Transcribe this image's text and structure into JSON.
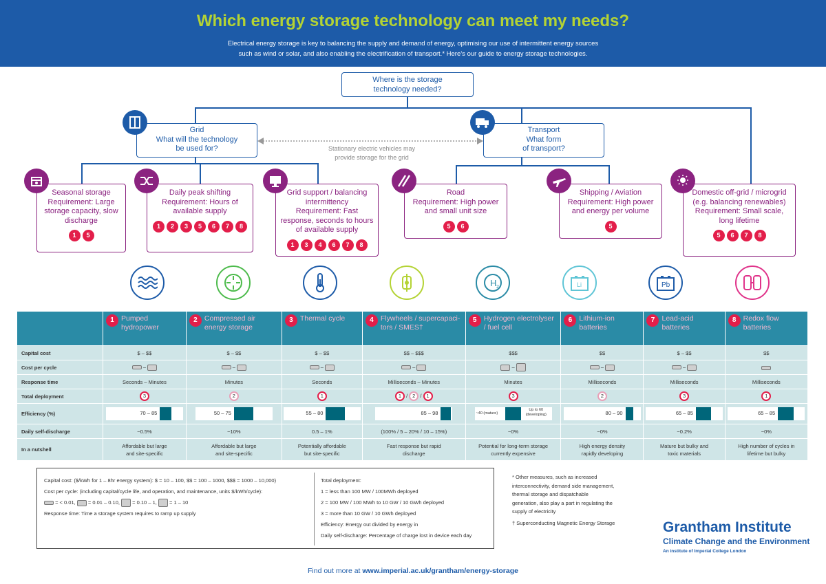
{
  "header": {
    "title": "Which energy storage technology can meet my needs?",
    "subtitle_line1": "Electrical energy storage is key to balancing the supply and demand of energy, optimising our use of intermittent energy sources",
    "subtitle_line2": "such as wind or solar, and also enabling the electrification of transport.* Here’s our guide to energy storage technologies."
  },
  "tree": {
    "root": {
      "line1": "Where is the storage",
      "line2": "technology needed?"
    },
    "grid": {
      "title": "Grid",
      "line1": "What will the technology",
      "line2": "be used for?"
    },
    "transport": {
      "title": "Transport",
      "line1": "What form",
      "line2": "of transport?"
    },
    "arrow_note_line1": "Stationary electric vehicles may",
    "arrow_note_line2": "provide storage for the grid",
    "nodes": [
      {
        "title": "Seasonal storage",
        "req": "Requirement: Large storage capacity, slow discharge",
        "dots": [
          "1",
          "5"
        ]
      },
      {
        "title": "Daily peak shifting",
        "req": "Requirement: Hours of available supply",
        "dots": [
          "1",
          "2",
          "3",
          "5",
          "6",
          "7",
          "8"
        ]
      },
      {
        "title": "Grid support / balancing intermittency",
        "req": "Requirement: Fast response, seconds to hours of available supply",
        "dots": [
          "1",
          "3",
          "4",
          "6",
          "7",
          "8"
        ]
      },
      {
        "title": "Road",
        "req": "Requirement: High power and small unit size",
        "dots": [
          "5",
          "6"
        ]
      },
      {
        "title": "Shipping / Aviation",
        "req": "Requirement: High power and energy per volume",
        "dots": [
          "5"
        ]
      },
      {
        "title": "Domestic off-grid / microgrid",
        "req": "(e.g. balancing renewables) Requirement: Small scale, long lifetime",
        "dots": [
          "5",
          "6",
          "7",
          "8"
        ]
      }
    ]
  },
  "icons": {
    "seasonal": "calendar-icon",
    "peak": "shuffle-icon",
    "gridsupport": "monitor-icon",
    "road": "road-icon",
    "shipping": "plane-icon",
    "domestic": "sun-icon",
    "grid": "door-icon",
    "transport": "truck-icon"
  },
  "tech_icon_names": [
    "waves-icon",
    "compress-icon",
    "thermometer-icon",
    "flywheel-icon",
    "hydrogen-icon",
    "lithium-battery-icon",
    "lead-battery-icon",
    "redox-icon"
  ],
  "tech_icon_text": {
    "h2": "H",
    "h2sub": "2",
    "li": "Li",
    "pb": "Pb"
  },
  "table": {
    "labels": {
      "capital": "Capital cost",
      "cycle": "Cost per cycle",
      "response": "Response time",
      "deployment": "Total deployment",
      "efficiency": "Efficiency (%)",
      "discharge": "Daily self-discharge",
      "nutshell": "In a nutshell"
    },
    "techs": [
      {
        "num": "1",
        "name": "Pumped hydropower",
        "capital": "$ – $$",
        "response": "Seconds – Minutes",
        "deploy": [
          "3"
        ],
        "eff": "70 – 85",
        "effmin": 70,
        "effmax": 85,
        "discharge": "~0.5%",
        "nut1": "Affordable but large",
        "nut2": "and site-specific"
      },
      {
        "num": "2",
        "name": "Compressed air energy storage",
        "capital": "$ – $$",
        "response": "Minutes",
        "deploy": [
          "2"
        ],
        "eff": "50 – 75",
        "effmin": 50,
        "effmax": 75,
        "discharge": "~10%",
        "nut1": "Affordable but large",
        "nut2": "and site-specific"
      },
      {
        "num": "3",
        "name": "Thermal cycle",
        "capital": "$ – $$",
        "response": "Seconds",
        "deploy": [
          "1"
        ],
        "eff": "55 – 80",
        "effmin": 55,
        "effmax": 80,
        "discharge": "0.5 – 1%",
        "nut1": "Potentially affordable",
        "nut2": "but site-specific"
      },
      {
        "num": "4",
        "name": "Flywheels / supercapaci-tors / SMES†",
        "capital": "$$ – $$$",
        "response": "Milliseconds – Minutes",
        "deploy": [
          "1",
          "2",
          "1"
        ],
        "eff": "85 – 98",
        "effmin": 85,
        "effmax": 98,
        "discharge": "(100% / 5 – 20% / 10 – 15%)",
        "nut1": "Fast response but rapid",
        "nut2": "discharge"
      },
      {
        "num": "5",
        "name": "Hydrogen electrolyser / fuel cell",
        "capital": "$$$",
        "response": "Minutes",
        "deploy": [
          "3"
        ],
        "eff": "",
        "effmin": 40,
        "effmax": 60,
        "eff_lo": "~40 (mature)",
        "eff_hi": "Up to 60 (developing)",
        "discharge": "~0%",
        "nut1": "Potential for long-term storage",
        "nut2": "currently expensive"
      },
      {
        "num": "6",
        "name": "Lithium-ion batteries",
        "capital": "$$",
        "response": "Milliseconds",
        "deploy": [
          "2"
        ],
        "eff": "80 – 90",
        "effmin": 80,
        "effmax": 90,
        "discharge": "~0%",
        "nut1": "High energy density",
        "nut2": "rapidly developing"
      },
      {
        "num": "7",
        "name": "Lead-acid batteries",
        "capital": "$ – $$",
        "response": "Milliseconds",
        "deploy": [
          "3"
        ],
        "eff": "65 – 85",
        "effmin": 65,
        "effmax": 85,
        "discharge": "~0.2%",
        "nut1": "Mature but bulky and",
        "nut2": "toxic materials"
      },
      {
        "num": "8",
        "name": "Redox flow batteries",
        "capital": "$$",
        "response": "Milliseconds",
        "deploy": [
          "1"
        ],
        "eff": "65 – 85",
        "effmin": 65,
        "effmax": 85,
        "discharge": "~0%",
        "nut1": "High number of cycles in",
        "nut2": "lifetime but bulky"
      }
    ],
    "cycle_sep": "–"
  },
  "legend": {
    "capital": "Capital cost: ($/kWh for 1 – 8hr energy system): $ = 10 – 100, $$ = 100 – 1000, $$$ = 1000 – 10,000)",
    "cycle": "Cost per cycle: (including capital/cycle life, and operation, and maintenance, units $/kWh/cycle):",
    "cycle_vals": [
      "= < 0.01,",
      "= 0.01 – 0.10,",
      "= 0.10 – 1,",
      "= 1 – 10"
    ],
    "response": "Response time: Time a storage system requires to ramp up supply",
    "deploy_title": "Total deployment:",
    "deploy1": "1 = less than 100 MW / 100MWh deployed",
    "deploy2": "2 = 100 MW / 100 MWh to 10 GW / 10 GWh deployed",
    "deploy3": "3 = more than 10 GW / 10 GWh deployed",
    "efficiency": "Efficiency: Energy out divided by energy in",
    "discharge": "Daily self-discharge: Percentage of charge lost in device each day"
  },
  "notes": {
    "star": "* Other measures, such as increased interconnectivity, demand side management, thermal storage and dispatchable generation, also play a part in regulating the supply of electricity",
    "dagger": "† Superconducting Magnetic Energy Storage"
  },
  "logo": {
    "line1": "Grantham Institute",
    "line2": "Climate Change and the Environment",
    "line3": "An institute of Imperial College London"
  },
  "footer": {
    "prefix": "Find out more at ",
    "url": "www.imperial.ac.uk/grantham/energy-storage"
  },
  "colors": {
    "blue": "#1d5ba8",
    "purple": "#8b2380",
    "green": "#b4d334",
    "red": "#e31e4a",
    "teal": "#2a8ba6",
    "tablebg": "#cfe5e7",
    "effbar": "#00667a"
  }
}
